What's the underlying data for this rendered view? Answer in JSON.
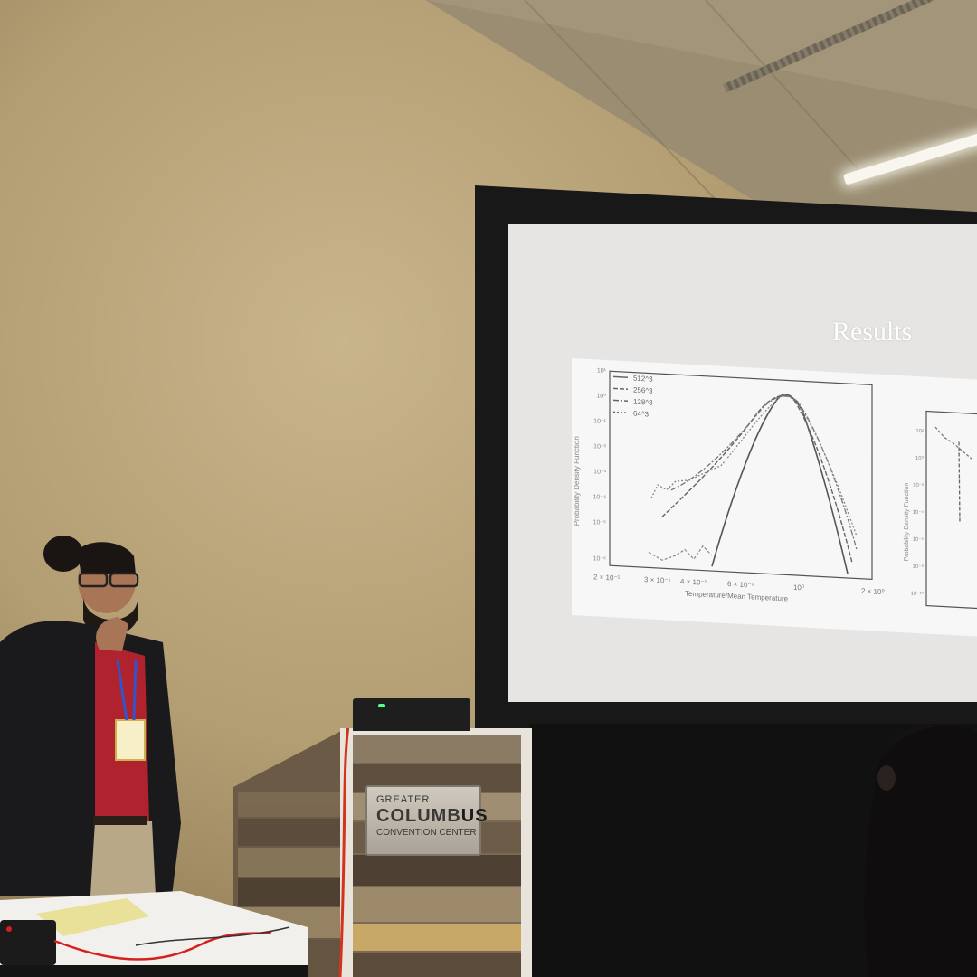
{
  "slide": {
    "title": "Results",
    "plot": {
      "legend": [
        "512^3",
        "256^3",
        "128^3",
        "64^3"
      ],
      "y_axis_label": "Probability Density Function",
      "x_axis_label": "Temperature/Mean Temperature",
      "x_ticks": [
        "2 × 10⁻¹",
        "3 × 10⁻¹",
        "4 × 10⁻¹",
        "6 × 10⁻¹",
        "10⁰",
        "2 × 10⁰"
      ],
      "y_ticks": [
        "10¹",
        "10⁰",
        "10⁻¹",
        "10⁻²",
        "10⁻³",
        "10⁻⁴",
        "10⁻⁵",
        "10⁻⁶"
      ],
      "second_y_axis_label": "Probability Density Function",
      "second_y_ticks": [
        "10²",
        "10⁰",
        "10⁻²",
        "10⁻⁴",
        "10⁻⁶",
        "10⁻⁸",
        "10⁻¹⁰"
      ]
    }
  },
  "podium_sign": {
    "line1": "GREATER",
    "line2a": "COLUMB",
    "line2b": "US",
    "line3": "CONVENTION CENTER"
  },
  "colors": {
    "wall": "#b39d73",
    "screen": "#e6e5e3",
    "plot_bg": "#f7f7f8",
    "shirt": "#b0232e",
    "jacket": "#1a1a1c"
  }
}
